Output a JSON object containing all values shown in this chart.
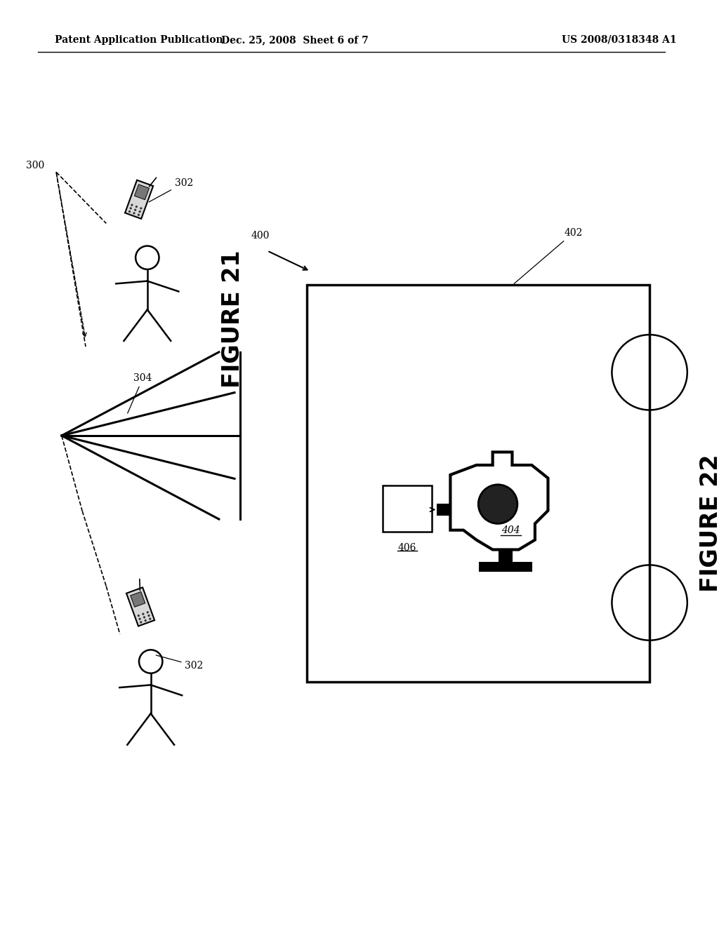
{
  "bg_color": "#ffffff",
  "header_left": "Patent Application Publication",
  "header_mid": "Dec. 25, 2008  Sheet 6 of 7",
  "header_right": "US 2008/0318348 A1",
  "fig21_label": "FIGURE 21",
  "fig22_label": "FIGURE 22"
}
